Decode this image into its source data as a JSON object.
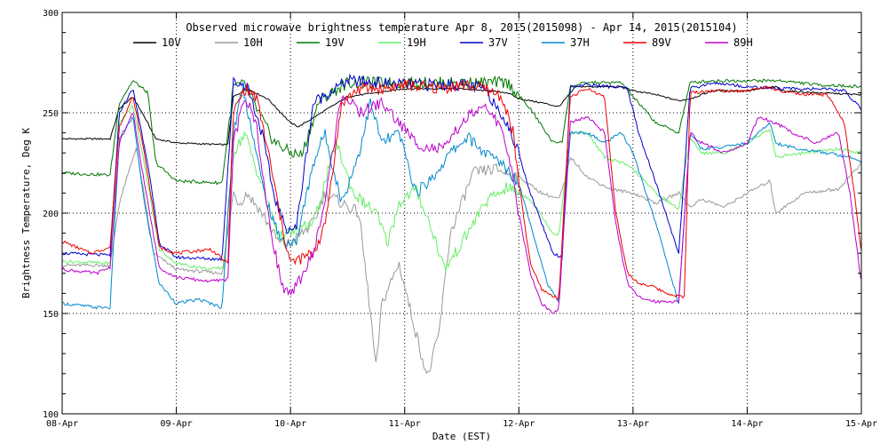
{
  "chart_data": {
    "type": "line",
    "title": "Observed microwave brightness temperature Apr  8, 2015(2015098) - Apr 14, 2015(2015104)",
    "xlabel": "Date (EST)",
    "ylabel": "Brightness Temperature, Deg K",
    "xlim": [
      0,
      7
    ],
    "ylim": [
      100,
      300
    ],
    "grid": true,
    "legend_position": "top",
    "x_tick_labels": [
      "08-Apr",
      "09-Apr",
      "10-Apr",
      "11-Apr",
      "12-Apr",
      "13-Apr",
      "14-Apr",
      "15-Apr"
    ],
    "y_ticks": [
      100,
      150,
      200,
      250,
      300
    ],
    "series": [
      {
        "name": "10V",
        "color": "#000000",
        "x": [
          0,
          0.42,
          0.5,
          0.62,
          0.72,
          0.82,
          1.0,
          1.45,
          1.5,
          1.62,
          1.8,
          2.0,
          2.07,
          2.5,
          3.0,
          3.5,
          3.9,
          4.0,
          4.2,
          4.35,
          4.5,
          4.9,
          5.0,
          5.2,
          5.4,
          5.5,
          5.7,
          6.0,
          6.25,
          6.3,
          6.6,
          7.0
        ],
        "values": [
          237,
          237,
          252,
          258,
          248,
          237,
          235,
          234,
          258,
          262,
          257,
          245,
          243,
          258,
          262,
          262,
          260,
          257,
          255,
          253,
          263,
          263,
          261,
          259,
          256,
          257,
          261,
          261,
          263,
          261,
          260,
          259
        ]
      },
      {
        "name": "10H",
        "color": "#999999",
        "x": [
          0,
          0.42,
          0.5,
          0.65,
          0.8,
          1.0,
          1.4,
          1.5,
          1.55,
          1.62,
          1.75,
          1.9,
          2.0,
          2.2,
          2.3,
          2.6,
          2.7,
          2.75,
          2.8,
          2.95,
          3.1,
          3.2,
          3.3,
          3.4,
          3.6,
          3.8,
          4.0,
          4.2,
          4.35,
          4.4,
          4.45,
          4.6,
          4.8,
          5.0,
          5.2,
          5.4,
          5.5,
          5.6,
          5.8,
          6.0,
          6.2,
          6.25,
          6.5,
          6.8,
          7.0
        ],
        "values": [
          174,
          174,
          205,
          233,
          180,
          172,
          170,
          210,
          205,
          210,
          200,
          185,
          185,
          195,
          210,
          200,
          150,
          122,
          155,
          175,
          140,
          118,
          140,
          190,
          220,
          222,
          218,
          210,
          207,
          215,
          228,
          218,
          212,
          210,
          205,
          210,
          203,
          207,
          203,
          210,
          216,
          200,
          210,
          212,
          225
        ]
      },
      {
        "name": "19V",
        "color": "#007700",
        "x": [
          0,
          0.42,
          0.5,
          0.62,
          0.75,
          0.82,
          1.0,
          1.4,
          1.5,
          1.6,
          1.72,
          1.85,
          2.0,
          2.1,
          2.25,
          2.5,
          3.0,
          3.5,
          3.9,
          4.1,
          4.3,
          4.38,
          4.45,
          4.6,
          4.9,
          5.0,
          5.2,
          5.4,
          5.5,
          5.7,
          6.0,
          6.3,
          6.6,
          7.0
        ],
        "values": [
          220,
          219,
          255,
          266,
          260,
          225,
          216,
          215,
          263,
          264,
          250,
          236,
          230,
          229,
          256,
          265,
          265,
          265,
          265,
          252,
          235,
          236,
          263,
          265,
          265,
          258,
          245,
          240,
          265,
          266,
          266,
          266,
          264,
          263
        ]
      },
      {
        "name": "19H",
        "color": "#66ee66",
        "x": [
          0,
          0.42,
          0.5,
          0.62,
          0.75,
          0.85,
          1.0,
          1.3,
          1.42,
          1.5,
          1.6,
          1.7,
          1.8,
          1.9,
          2.0,
          2.2,
          2.4,
          2.55,
          2.75,
          2.85,
          2.95,
          3.1,
          3.25,
          3.35,
          3.5,
          3.7,
          3.9,
          4.1,
          4.3,
          4.35,
          4.45,
          4.6,
          4.75,
          4.9,
          5.0,
          5.2,
          5.4,
          5.5,
          5.6,
          5.8,
          6.0,
          6.2,
          6.25,
          6.5,
          6.8,
          7.0
        ],
        "values": [
          176,
          175,
          245,
          254,
          215,
          182,
          175,
          172,
          173,
          230,
          240,
          222,
          205,
          188,
          190,
          195,
          235,
          210,
          200,
          185,
          205,
          212,
          190,
          172,
          185,
          205,
          213,
          207,
          190,
          189,
          240,
          240,
          228,
          225,
          222,
          210,
          202,
          238,
          230,
          230,
          235,
          242,
          228,
          230,
          232,
          230
        ]
      },
      {
        "name": "37V",
        "color": "#0000cc",
        "x": [
          0,
          0.42,
          0.5,
          0.62,
          0.75,
          0.85,
          1.0,
          1.4,
          1.5,
          1.62,
          1.75,
          1.85,
          1.95,
          2.05,
          2.2,
          2.5,
          3.0,
          3.5,
          3.7,
          3.85,
          4.0,
          4.1,
          4.3,
          4.38,
          4.45,
          4.6,
          4.8,
          4.95,
          5.05,
          5.2,
          5.4,
          5.5,
          5.7,
          6.0,
          6.3,
          6.6,
          6.85,
          7.0
        ],
        "values": [
          180,
          179,
          250,
          262,
          225,
          185,
          178,
          177,
          265,
          264,
          240,
          210,
          193,
          192,
          255,
          266,
          264,
          264,
          262,
          250,
          230,
          210,
          180,
          178,
          263,
          264,
          263,
          262,
          240,
          215,
          180,
          262,
          265,
          263,
          262,
          262,
          261,
          252
        ]
      },
      {
        "name": "37H",
        "color": "#0088cc",
        "x": [
          0,
          0.3,
          0.42,
          0.5,
          0.62,
          0.72,
          0.85,
          1.0,
          1.2,
          1.4,
          1.5,
          1.58,
          1.65,
          1.75,
          1.85,
          1.95,
          2.05,
          2.2,
          2.3,
          2.45,
          2.6,
          2.7,
          2.8,
          2.95,
          3.1,
          3.25,
          3.4,
          3.55,
          3.7,
          3.85,
          4.0,
          4.1,
          4.25,
          4.35,
          4.45,
          4.6,
          4.75,
          4.9,
          5.0,
          5.2,
          5.4,
          5.5,
          5.6,
          5.8,
          6.0,
          6.2,
          6.25,
          6.45,
          6.7,
          6.9,
          7.0
        ],
        "values": [
          155,
          153,
          153,
          237,
          248,
          205,
          165,
          155,
          157,
          153,
          240,
          263,
          245,
          215,
          195,
          185,
          185,
          225,
          240,
          205,
          230,
          255,
          235,
          240,
          210,
          218,
          230,
          238,
          230,
          225,
          215,
          195,
          165,
          155,
          240,
          240,
          235,
          240,
          230,
          195,
          155,
          240,
          232,
          233,
          235,
          245,
          235,
          232,
          230,
          228,
          226
        ]
      },
      {
        "name": "89V",
        "color": "#ee0000",
        "x": [
          0,
          0.25,
          0.42,
          0.5,
          0.62,
          0.72,
          0.85,
          1.0,
          1.3,
          1.45,
          1.5,
          1.6,
          1.7,
          1.8,
          1.92,
          2.0,
          2.2,
          2.3,
          2.45,
          2.6,
          2.8,
          3.0,
          3.3,
          3.5,
          3.7,
          3.85,
          3.95,
          4.0,
          4.1,
          4.2,
          4.35,
          4.45,
          4.6,
          4.75,
          4.85,
          4.95,
          5.05,
          5.15,
          5.3,
          5.45,
          5.5,
          5.7,
          6.0,
          6.2,
          6.25,
          6.5,
          6.7,
          6.85,
          6.95,
          7.0
        ],
        "values": [
          186,
          180,
          183,
          243,
          258,
          230,
          183,
          180,
          182,
          175,
          250,
          262,
          258,
          232,
          195,
          175,
          180,
          193,
          255,
          262,
          262,
          264,
          262,
          264,
          262,
          258,
          240,
          215,
          175,
          162,
          157,
          258,
          262,
          258,
          200,
          170,
          165,
          164,
          160,
          158,
          260,
          261,
          261,
          263,
          261,
          259,
          259,
          245,
          205,
          180
        ]
      },
      {
        "name": "89H",
        "color": "#bb00cc",
        "x": [
          0,
          0.3,
          0.42,
          0.5,
          0.62,
          0.72,
          0.85,
          1.0,
          1.3,
          1.45,
          1.5,
          1.6,
          1.7,
          1.8,
          1.92,
          2.0,
          2.2,
          2.3,
          2.45,
          2.6,
          2.8,
          2.95,
          3.1,
          3.25,
          3.35,
          3.5,
          3.6,
          3.75,
          3.85,
          3.95,
          4.0,
          4.1,
          4.2,
          4.3,
          4.35,
          4.45,
          4.6,
          4.75,
          4.85,
          4.95,
          5.05,
          5.2,
          5.4,
          5.5,
          5.6,
          5.8,
          6.0,
          6.1,
          6.25,
          6.4,
          6.6,
          6.8,
          6.9,
          7.0
        ],
        "values": [
          172,
          170,
          173,
          235,
          250,
          215,
          173,
          168,
          166,
          167,
          235,
          258,
          245,
          200,
          165,
          158,
          180,
          205,
          260,
          250,
          255,
          245,
          235,
          232,
          232,
          245,
          250,
          252,
          240,
          220,
          200,
          170,
          155,
          150,
          152,
          245,
          248,
          240,
          195,
          165,
          158,
          156,
          156,
          240,
          235,
          230,
          235,
          248,
          245,
          240,
          235,
          240,
          210,
          165
        ]
      }
    ]
  }
}
